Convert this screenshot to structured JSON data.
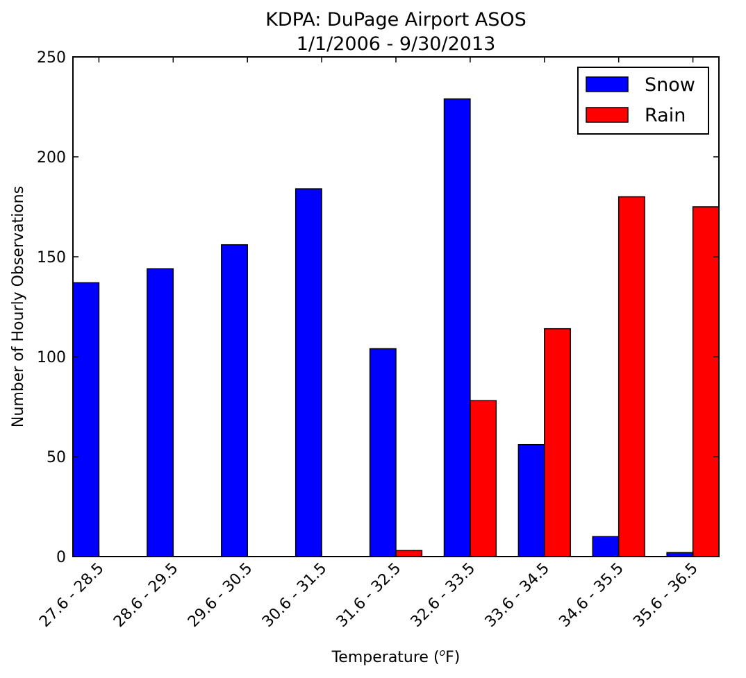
{
  "chart_data": {
    "type": "bar",
    "title": "KDPA: DuPage Airport ASOS",
    "subtitle": "1/1/2006 - 9/30/2013",
    "xlabel": "Temperature (",
    "xlabel_sup": "o",
    "xlabel_end": "F)",
    "ylabel": "Number of Hourly Observations",
    "ylim": [
      0,
      250
    ],
    "yticks": [
      "0",
      "50",
      "100",
      "150",
      "200",
      "250"
    ],
    "categories": [
      "27.6 - 28.5",
      "28.6 - 29.5",
      "29.6 - 30.5",
      "30.6 - 31.5",
      "31.6 - 32.5",
      "32.6 - 33.5",
      "33.6 - 34.5",
      "34.6 - 35.5",
      "35.6 - 36.5"
    ],
    "series": [
      {
        "name": "Snow",
        "color": "#0000ff",
        "values": [
          137,
          144,
          156,
          184,
          104,
          229,
          56,
          10,
          2
        ]
      },
      {
        "name": "Rain",
        "color": "#ff0000",
        "values": [
          0,
          0,
          0,
          0,
          3,
          78,
          114,
          180,
          175
        ]
      }
    ],
    "legend_position": "top-right",
    "grid": false
  }
}
